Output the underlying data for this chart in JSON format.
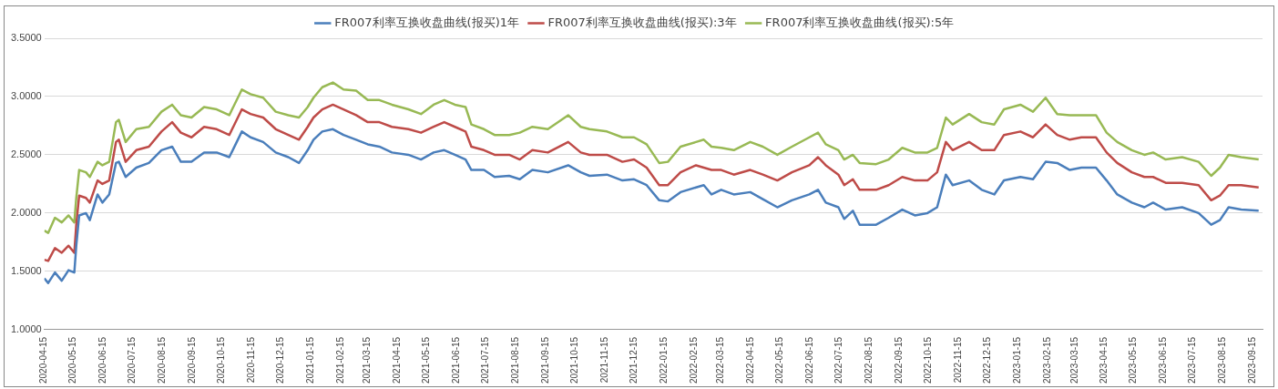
{
  "chart_data": {
    "type": "line",
    "x": [
      "2020-04-15",
      "2020-04-19",
      "2020-04-26",
      "2020-05-03",
      "2020-05-10",
      "2020-05-16",
      "2020-05-18",
      "2020-05-21",
      "2020-05-28",
      "2020-06-01",
      "2020-06-09",
      "2020-06-14",
      "2020-06-21",
      "2020-06-28",
      "2020-07-01",
      "2020-07-08",
      "2020-07-19",
      "2020-08-01",
      "2020-08-14",
      "2020-08-25",
      "2020-09-03",
      "2020-09-14",
      "2020-09-27",
      "2020-10-10",
      "2020-10-23",
      "2020-11-05",
      "2020-11-14",
      "2020-11-27",
      "2020-12-10",
      "2020-12-23",
      "2021-01-03",
      "2021-01-12",
      "2021-01-18",
      "2021-01-27",
      "2021-02-07",
      "2021-02-18",
      "2021-03-03",
      "2021-03-15",
      "2021-03-27",
      "2021-04-09",
      "2021-04-26",
      "2021-05-09",
      "2021-05-22",
      "2021-06-02",
      "2021-06-13",
      "2021-06-24",
      "2021-06-30",
      "2021-07-13",
      "2021-07-24",
      "2021-08-08",
      "2021-08-19",
      "2021-09-01",
      "2021-09-17",
      "2021-10-08",
      "2021-10-21",
      "2021-10-30",
      "2021-11-17",
      "2021-12-03",
      "2021-12-15",
      "2021-12-28",
      "2022-01-10",
      "2022-01-19",
      "2022-02-01",
      "2022-02-17",
      "2022-02-25",
      "2022-03-05",
      "2022-03-15",
      "2022-03-28",
      "2022-04-14",
      "2022-04-27",
      "2022-05-12",
      "2022-05-27",
      "2022-06-14",
      "2022-06-23",
      "2022-07-01",
      "2022-07-14",
      "2022-07-20",
      "2022-07-29",
      "2022-08-05",
      "2022-08-22",
      "2022-09-04",
      "2022-09-18",
      "2022-10-01",
      "2022-10-14",
      "2022-10-24",
      "2022-11-02",
      "2022-11-09",
      "2022-11-26",
      "2022-12-09",
      "2022-12-22",
      "2023-01-01",
      "2023-01-18",
      "2023-01-31",
      "2023-02-13",
      "2023-02-25",
      "2023-03-10",
      "2023-03-22",
      "2023-04-06",
      "2023-04-17",
      "2023-04-28",
      "2023-05-13",
      "2023-05-26",
      "2023-06-04",
      "2023-06-17",
      "2023-07-04",
      "2023-07-21",
      "2023-08-03",
      "2023-08-12",
      "2023-08-21",
      "2023-09-03",
      "2023-09-21"
    ],
    "series": [
      {
        "name": "FR007利率互换收盘曲线(报买)1年",
        "color": "#4a7ebb",
        "values": [
          1.44,
          1.4,
          1.49,
          1.42,
          1.51,
          1.49,
          1.72,
          1.98,
          2.0,
          1.94,
          2.16,
          2.09,
          2.16,
          2.43,
          2.44,
          2.31,
          2.39,
          2.43,
          2.54,
          2.57,
          2.44,
          2.44,
          2.52,
          2.52,
          2.48,
          2.7,
          2.65,
          2.61,
          2.52,
          2.48,
          2.43,
          2.54,
          2.63,
          2.7,
          2.72,
          2.67,
          2.63,
          2.59,
          2.57,
          2.52,
          2.5,
          2.46,
          2.52,
          2.54,
          2.5,
          2.46,
          2.37,
          2.37,
          2.31,
          2.32,
          2.29,
          2.37,
          2.35,
          2.41,
          2.35,
          2.32,
          2.33,
          2.28,
          2.29,
          2.24,
          2.11,
          2.1,
          2.18,
          2.22,
          2.24,
          2.16,
          2.2,
          2.16,
          2.18,
          2.12,
          2.05,
          2.11,
          2.16,
          2.2,
          2.09,
          2.05,
          1.95,
          2.02,
          1.9,
          1.9,
          1.96,
          2.03,
          1.98,
          2.0,
          2.05,
          2.33,
          2.24,
          2.28,
          2.2,
          2.16,
          2.28,
          2.31,
          2.29,
          2.44,
          2.43,
          2.37,
          2.39,
          2.39,
          2.28,
          2.16,
          2.09,
          2.05,
          2.09,
          2.03,
          2.05,
          2.0,
          1.9,
          1.94,
          2.05,
          2.03,
          2.02
        ]
      },
      {
        "name": "FR007利率互换收盘曲线(报买):3年",
        "color": "#be4b48",
        "values": [
          1.6,
          1.59,
          1.7,
          1.66,
          1.72,
          1.66,
          1.9,
          2.15,
          2.13,
          2.09,
          2.28,
          2.25,
          2.28,
          2.61,
          2.63,
          2.44,
          2.54,
          2.57,
          2.7,
          2.78,
          2.69,
          2.65,
          2.74,
          2.72,
          2.67,
          2.89,
          2.85,
          2.82,
          2.72,
          2.67,
          2.63,
          2.74,
          2.82,
          2.89,
          2.93,
          2.89,
          2.84,
          2.78,
          2.78,
          2.74,
          2.72,
          2.69,
          2.74,
          2.78,
          2.74,
          2.7,
          2.57,
          2.54,
          2.5,
          2.5,
          2.46,
          2.54,
          2.52,
          2.61,
          2.52,
          2.5,
          2.5,
          2.44,
          2.46,
          2.39,
          2.24,
          2.24,
          2.35,
          2.41,
          2.39,
          2.37,
          2.37,
          2.33,
          2.37,
          2.33,
          2.28,
          2.35,
          2.41,
          2.48,
          2.41,
          2.33,
          2.24,
          2.29,
          2.2,
          2.2,
          2.24,
          2.31,
          2.28,
          2.28,
          2.35,
          2.61,
          2.54,
          2.61,
          2.54,
          2.54,
          2.67,
          2.7,
          2.65,
          2.76,
          2.67,
          2.63,
          2.65,
          2.65,
          2.52,
          2.43,
          2.35,
          2.31,
          2.31,
          2.26,
          2.26,
          2.24,
          2.11,
          2.15,
          2.24,
          2.24,
          2.22
        ]
      },
      {
        "name": "FR007利率互换收盘曲线(报买):5年",
        "color": "#98b954",
        "values": [
          1.85,
          1.83,
          1.96,
          1.92,
          1.98,
          1.92,
          2.13,
          2.37,
          2.35,
          2.31,
          2.44,
          2.41,
          2.44,
          2.78,
          2.8,
          2.61,
          2.72,
          2.74,
          2.87,
          2.93,
          2.84,
          2.82,
          2.91,
          2.89,
          2.84,
          3.06,
          3.02,
          2.99,
          2.87,
          2.84,
          2.82,
          2.91,
          2.99,
          3.08,
          3.12,
          3.06,
          3.05,
          2.97,
          2.97,
          2.93,
          2.89,
          2.85,
          2.93,
          2.97,
          2.93,
          2.91,
          2.76,
          2.72,
          2.67,
          2.67,
          2.69,
          2.74,
          2.72,
          2.84,
          2.74,
          2.72,
          2.7,
          2.65,
          2.65,
          2.59,
          2.43,
          2.44,
          2.57,
          2.61,
          2.63,
          2.57,
          2.56,
          2.54,
          2.61,
          2.57,
          2.5,
          2.57,
          2.65,
          2.69,
          2.59,
          2.54,
          2.46,
          2.5,
          2.43,
          2.42,
          2.46,
          2.56,
          2.52,
          2.52,
          2.56,
          2.82,
          2.76,
          2.85,
          2.78,
          2.76,
          2.89,
          2.93,
          2.87,
          2.99,
          2.85,
          2.84,
          2.84,
          2.84,
          2.69,
          2.61,
          2.54,
          2.5,
          2.52,
          2.46,
          2.48,
          2.44,
          2.32,
          2.39,
          2.5,
          2.48,
          2.46
        ]
      }
    ],
    "xlim": [
      "2020-04-15",
      "2023-09-25"
    ],
    "xticks": [
      "2020-04-15",
      "2020-05-15",
      "2020-06-15",
      "2020-07-15",
      "2020-08-15",
      "2020-09-15",
      "2020-10-15",
      "2020-11-15",
      "2020-12-15",
      "2021-01-15",
      "2021-02-15",
      "2021-03-15",
      "2021-04-15",
      "2021-05-15",
      "2021-06-15",
      "2021-07-15",
      "2021-08-15",
      "2021-09-15",
      "2021-10-15",
      "2021-11-15",
      "2021-12-15",
      "2022-01-15",
      "2022-02-15",
      "2022-03-15",
      "2022-04-15",
      "2022-05-15",
      "2022-06-15",
      "2022-07-15",
      "2022-08-15",
      "2022-09-15",
      "2022-10-15",
      "2022-11-15",
      "2022-12-15",
      "2023-01-15",
      "2023-02-15",
      "2023-03-15",
      "2023-04-15",
      "2023-05-15",
      "2023-06-15",
      "2023-07-15",
      "2023-08-15",
      "2023-09-15"
    ],
    "ylim": [
      1,
      3.5
    ],
    "yticks": [
      {
        "value": 1,
        "label": "1.0000"
      },
      {
        "value": 1.5,
        "label": "1.5000"
      },
      {
        "value": 2,
        "label": "2.0000"
      },
      {
        "value": 2.5,
        "label": "2.5000"
      },
      {
        "value": 3,
        "label": "3.0000"
      },
      {
        "value": 3.5,
        "label": "3.5000"
      }
    ],
    "grid": "y",
    "legend": "top",
    "marker": "none",
    "line_style": "solid"
  }
}
